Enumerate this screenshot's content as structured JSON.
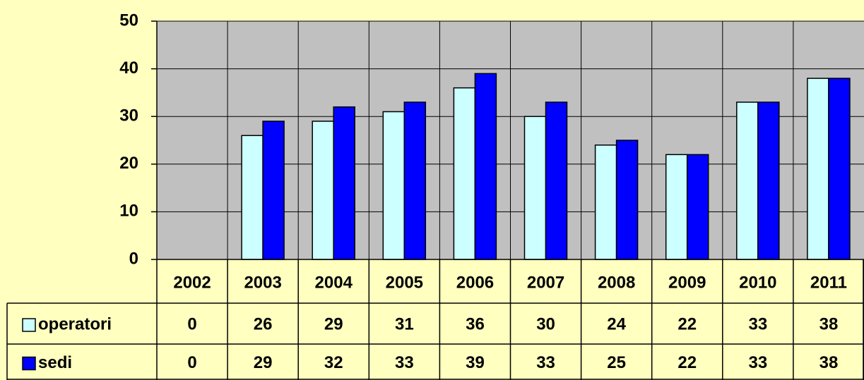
{
  "chart_data": {
    "type": "bar",
    "categories": [
      "2002",
      "2003",
      "2004",
      "2005",
      "2006",
      "2007",
      "2008",
      "2009",
      "2010",
      "2011"
    ],
    "series": [
      {
        "name": "operatori",
        "color": "#ccffff",
        "values": [
          0,
          26,
          29,
          31,
          36,
          30,
          24,
          22,
          33,
          38
        ]
      },
      {
        "name": "sedi",
        "color": "#0000ff",
        "values": [
          0,
          29,
          32,
          33,
          39,
          33,
          25,
          22,
          33,
          38
        ]
      }
    ],
    "ylim": [
      0,
      50
    ],
    "yticks": [
      0,
      10,
      20,
      30,
      40,
      50
    ],
    "grid": true,
    "data_table": true
  }
}
